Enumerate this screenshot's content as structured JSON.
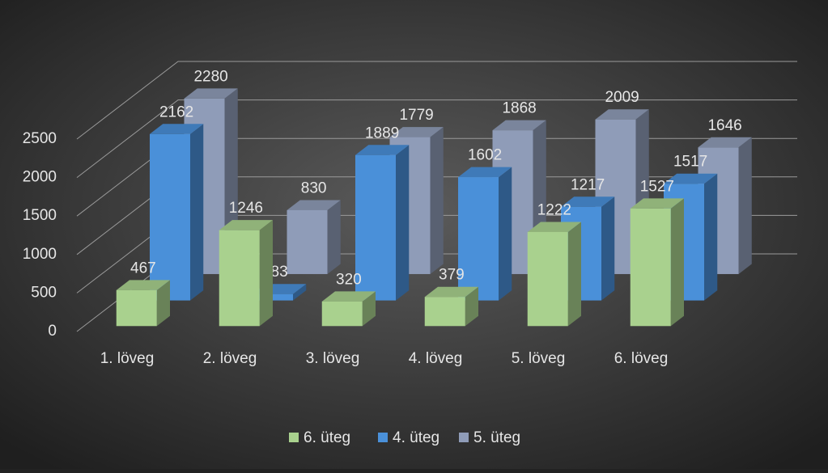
{
  "chart_data": {
    "type": "bar3d",
    "categories": [
      "1. löveg",
      "2. löveg",
      "3. löveg",
      "4. löveg",
      "5. löveg",
      "6. löveg"
    ],
    "series": [
      {
        "name": "6. üteg",
        "color": "#a9d18e",
        "values": [
          467,
          1246,
          320,
          379,
          1222,
          1527
        ]
      },
      {
        "name": "4. üteg",
        "color": "#4a90d9",
        "values": [
          2162,
          83,
          1889,
          1602,
          1217,
          1517
        ]
      },
      {
        "name": "5. üteg",
        "color": "#8f9cb8",
        "values": [
          2280,
          830,
          1779,
          1868,
          2009,
          1646
        ]
      }
    ],
    "ylim": [
      0,
      2500
    ],
    "yticks": [
      0,
      500,
      1000,
      1500,
      2000,
      2500
    ],
    "grid": true,
    "legend": "bottom"
  }
}
